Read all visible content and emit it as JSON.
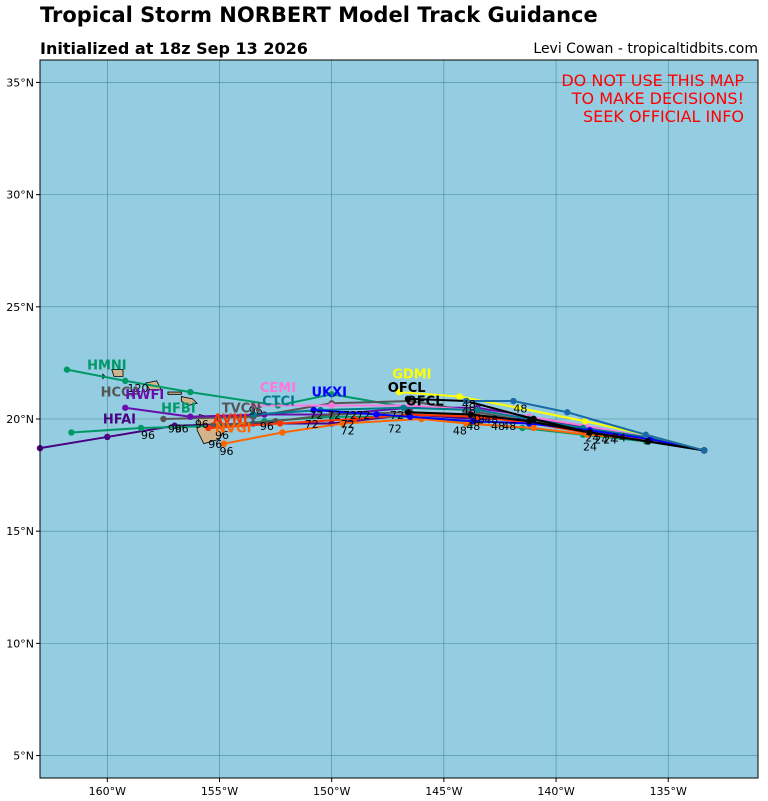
{
  "header": {
    "title": "Tropical Storm NORBERT Model Track Guidance",
    "subtitle": "Initialized at 18z Sep 13 2026",
    "credit": "Levi Cowan - tropicaltidbits.com"
  },
  "warning": [
    "DO NOT USE THIS MAP",
    "TO MAKE DECISIONS!",
    "SEEK OFFICIAL INFO"
  ],
  "map": {
    "lon_range": [
      -163,
      -131
    ],
    "lat_range": [
      4,
      36
    ],
    "ocean_color": "#94cde2",
    "land_color": "#d2b48c",
    "grid_color": "#4a8a8a",
    "lon_ticks": [
      -160,
      -155,
      -150,
      -145,
      -140,
      -135
    ],
    "lon_tick_labels": [
      "160°W",
      "155°W",
      "150°W",
      "145°W",
      "140°W",
      "135°W"
    ],
    "lat_ticks": [
      5,
      10,
      15,
      20,
      25,
      30,
      35
    ],
    "lat_tick_labels": [
      "5°N",
      "10°N",
      "15°N",
      "20°N",
      "25°N",
      "30°N",
      "35°N"
    ]
  },
  "islands": [
    {
      "name": "hawaii-big-island",
      "poly": [
        [
          -155.9,
          20.2
        ],
        [
          -155.1,
          20.0
        ],
        [
          -154.8,
          19.5
        ],
        [
          -155.0,
          19.1
        ],
        [
          -155.7,
          18.9
        ],
        [
          -156.0,
          19.5
        ]
      ]
    },
    {
      "name": "maui",
      "poly": [
        [
          -156.7,
          21.0
        ],
        [
          -156.2,
          20.9
        ],
        [
          -156.0,
          20.7
        ],
        [
          -156.4,
          20.6
        ],
        [
          -156.7,
          20.8
        ]
      ]
    },
    {
      "name": "oahu",
      "poly": [
        [
          -158.3,
          21.6
        ],
        [
          -157.8,
          21.7
        ],
        [
          -157.6,
          21.3
        ],
        [
          -158.1,
          21.3
        ]
      ]
    },
    {
      "name": "kauai",
      "poly": [
        [
          -159.8,
          22.2
        ],
        [
          -159.3,
          22.2
        ],
        [
          -159.3,
          21.9
        ],
        [
          -159.7,
          21.9
        ]
      ]
    },
    {
      "name": "molokai",
      "poly": [
        [
          -157.3,
          21.2
        ],
        [
          -156.7,
          21.2
        ],
        [
          -156.7,
          21.1
        ],
        [
          -157.3,
          21.1
        ]
      ]
    },
    {
      "name": "niihau",
      "poly": [
        [
          -160.2,
          22.0
        ],
        [
          -160.1,
          21.9
        ],
        [
          -160.2,
          21.8
        ]
      ]
    }
  ],
  "chart_data": {
    "type": "map-tracks",
    "tracks": [
      {
        "name": "HMNI",
        "color": "#009966",
        "points": [
          [
            -133.4,
            18.6
          ],
          [
            -136,
            19.2
          ],
          [
            -138.8,
            19.5
          ],
          [
            -141,
            20
          ],
          [
            -143.5,
            20.4
          ],
          [
            -146.5,
            20.5
          ],
          [
            -150,
            21.1
          ],
          [
            -152.4,
            20.6
          ],
          [
            -156.3,
            21.2
          ],
          [
            -159.2,
            21.7
          ],
          [
            -161.8,
            22.2
          ]
        ],
        "label": {
          "text": "HMNI",
          "lon": -160.9,
          "lat": 22.2
        }
      },
      {
        "name": "HCCA",
        "color": "#555555",
        "points": [
          [
            -133.4,
            18.6
          ],
          [
            -136,
            19.1
          ],
          [
            -138.7,
            19.6
          ],
          [
            -141.2,
            19.9
          ],
          [
            -143.5,
            20.3
          ],
          [
            -146.5,
            20.8
          ],
          [
            -150,
            20.7
          ],
          [
            -153.5,
            20.1
          ],
          [
            -157.5,
            20
          ]
        ],
        "label": {
          "text": "HCCA",
          "lon": -160.3,
          "lat": 21.0
        }
      },
      {
        "name": "HWFI",
        "color": "#6a0dad",
        "points": [
          [
            -133.4,
            18.6
          ],
          [
            -136,
            19.2
          ],
          [
            -138.7,
            19.6
          ],
          [
            -141.2,
            20.1
          ],
          [
            -143.5,
            20.5
          ],
          [
            -146.5,
            20.5
          ],
          [
            -150,
            20.2
          ],
          [
            -153,
            20.2
          ],
          [
            -156.3,
            20.1
          ],
          [
            -159.2,
            20.5
          ]
        ],
        "label": {
          "text": "HWFI",
          "lon": -159.2,
          "lat": 20.9
        }
      },
      {
        "name": "HFAI",
        "color": "#4b0082",
        "points": [
          [
            -133.4,
            18.6
          ],
          [
            -136,
            19.2
          ],
          [
            -138.7,
            19.6
          ],
          [
            -141,
            20
          ],
          [
            -143.5,
            20
          ],
          [
            -146.5,
            20.2
          ],
          [
            -150,
            19.8
          ],
          [
            -153.5,
            19.8
          ],
          [
            -157,
            19.7
          ],
          [
            -160,
            19.2
          ],
          [
            -163,
            18.7
          ]
        ],
        "label": {
          "text": "HFAI",
          "lon": -160.2,
          "lat": 19.8
        }
      },
      {
        "name": "HFBI",
        "color": "#009966",
        "points": [
          [
            -133.4,
            18.6
          ],
          [
            -136,
            19.0
          ],
          [
            -138.8,
            19.3
          ],
          [
            -141.5,
            19.6
          ],
          [
            -143.8,
            19.8
          ],
          [
            -146.5,
            20.1
          ],
          [
            -150,
            20.1
          ],
          [
            -153,
            19.9
          ],
          [
            -155,
            19.7
          ],
          [
            -158.5,
            19.6
          ],
          [
            -161.6,
            19.4
          ]
        ],
        "label": {
          "text": "HFBI",
          "lon": -157.6,
          "lat": 20.3
        }
      },
      {
        "name": "TVCN",
        "color": "#555555",
        "points": [
          [
            -133.4,
            18.6
          ],
          [
            -136,
            19.1
          ],
          [
            -138.7,
            19.5
          ],
          [
            -141.2,
            19.9
          ],
          [
            -143.7,
            20.2
          ],
          [
            -146.5,
            20.3
          ],
          [
            -150,
            20.2
          ],
          [
            -152.5,
            19.9
          ],
          [
            -155.3,
            19.7
          ]
        ],
        "label": {
          "text": "TVCN",
          "lon": -154.9,
          "lat": 20.3
        }
      },
      {
        "name": "AVNI",
        "color": "#ff3300",
        "points": [
          [
            -133.4,
            18.6
          ],
          [
            -136,
            19.1
          ],
          [
            -138.7,
            19.4
          ],
          [
            -141,
            19.8
          ],
          [
            -143.5,
            20.1
          ],
          [
            -146.5,
            20.2
          ],
          [
            -149,
            20.0
          ],
          [
            -152.3,
            19.8
          ],
          [
            -155.5,
            19.6
          ]
        ],
        "label": {
          "text": "AVNI",
          "lon": -155.3,
          "lat": 19.8
        }
      },
      {
        "name": "NVGI",
        "color": "#ff6600",
        "points": [
          [
            -133.4,
            18.6
          ],
          [
            -136,
            19.1
          ],
          [
            -138.6,
            19.3
          ],
          [
            -141,
            19.6
          ],
          [
            -144,
            19.8
          ],
          [
            -146,
            20.0
          ],
          [
            -149.5,
            19.8
          ],
          [
            -152.2,
            19.4
          ],
          [
            -154.8,
            18.9
          ]
        ],
        "label": {
          "text": "NVGI",
          "lon": -155.2,
          "lat": 19.4
        }
      },
      {
        "name": "CEMI",
        "color": "#ff77dd",
        "points": [
          [
            -133.4,
            18.6
          ],
          [
            -136,
            19.2
          ],
          [
            -138.7,
            19.7
          ],
          [
            -141.2,
            20.1
          ],
          [
            -143.7,
            20.4
          ],
          [
            -146.5,
            20.6
          ],
          [
            -150,
            20.6
          ],
          [
            -153.5,
            20.6
          ]
        ],
        "label": {
          "text": "CEMI",
          "lon": -153.2,
          "lat": 21.2
        }
      },
      {
        "name": "CTCI",
        "color": "#007c8c",
        "points": [
          [
            -133.4,
            18.6
          ],
          [
            -136,
            19.2
          ],
          [
            -138.8,
            19.6
          ],
          [
            -141.2,
            20
          ],
          [
            -143.5,
            20.4
          ],
          [
            -146.8,
            20.5
          ],
          [
            -150.5,
            20.4
          ],
          [
            -153.5,
            20.2
          ]
        ],
        "label": {
          "text": "CTCI",
          "lon": -153.1,
          "lat": 20.6
        }
      },
      {
        "name": "UKXI",
        "color": "#0000ff",
        "points": [
          [
            -133.4,
            18.6
          ],
          [
            -135.8,
            19.1
          ],
          [
            -138.5,
            19.5
          ],
          [
            -141.2,
            19.8
          ],
          [
            -143.7,
            19.9
          ],
          [
            -146.5,
            20.1
          ],
          [
            -148.0,
            20.2
          ],
          [
            -150.8,
            20.4
          ]
        ],
        "label": {
          "text": "UKXI",
          "lon": -150.9,
          "lat": 21.0
        }
      },
      {
        "name": "GDMI",
        "color": "#ffff00",
        "points": [
          [
            -133.4,
            18.6
          ],
          [
            -136,
            19.3
          ],
          [
            -138.7,
            19.9
          ],
          [
            -141.7,
            20.5
          ],
          [
            -144.3,
            21.0
          ],
          [
            -147,
            21.2
          ]
        ],
        "label": {
          "text": "GDMI",
          "lon": -147.3,
          "lat": 21.8
        }
      },
      {
        "name": "OFCL-1",
        "color": "#000000",
        "points": [
          [
            -133.4,
            18.6
          ],
          [
            -135.9,
            19.0
          ],
          [
            -138.5,
            19.4
          ],
          [
            -141.0,
            20.0
          ],
          [
            -144.0,
            20.8
          ],
          [
            -146.6,
            20.9
          ]
        ],
        "label": {
          "text": "OFCL",
          "lon": -147.5,
          "lat": 21.2
        }
      },
      {
        "name": "OFCL-2",
        "color": "#000000",
        "points": [
          [
            -133.4,
            18.6
          ],
          [
            -135.9,
            19.0
          ],
          [
            -138.5,
            19.4
          ],
          [
            -141.2,
            19.9
          ],
          [
            -143.8,
            20.2
          ],
          [
            -146.6,
            20.3
          ]
        ],
        "label": {
          "text": "OFCL",
          "lon": -146.7,
          "lat": 20.6
        }
      },
      {
        "name": "teal-east",
        "color": "#1a6aa8",
        "points": [
          [
            -133.4,
            18.6
          ],
          [
            -136,
            19.3
          ],
          [
            -139.5,
            20.3
          ],
          [
            -141.9,
            20.8
          ],
          [
            -144,
            20.8
          ]
        ],
        "label": null
      }
    ],
    "hour_labels": [
      {
        "text": "120",
        "lon": -159.1,
        "lat": 21.2
      },
      {
        "text": "96",
        "lon": -153.7,
        "lat": 20.2
      },
      {
        "text": "96",
        "lon": -156.1,
        "lat": 19.6
      },
      {
        "text": "96",
        "lon": -153.2,
        "lat": 19.5
      },
      {
        "text": "96",
        "lon": -157.3,
        "lat": 19.4
      },
      {
        "text": "96",
        "lon": -157.0,
        "lat": 19.4
      },
      {
        "text": "96",
        "lon": -158.5,
        "lat": 19.1
      },
      {
        "text": "96",
        "lon": -155.2,
        "lat": 19.1
      },
      {
        "text": "96",
        "lon": -155.5,
        "lat": 18.7
      },
      {
        "text": "96",
        "lon": -155.0,
        "lat": 18.4
      },
      {
        "text": "72",
        "lon": -151.0,
        "lat": 20.0
      },
      {
        "text": "72",
        "lon": -150.2,
        "lat": 20.0
      },
      {
        "text": "72",
        "lon": -149.5,
        "lat": 20.0
      },
      {
        "text": "72",
        "lon": -148.9,
        "lat": 20.0
      },
      {
        "text": "72",
        "lon": -151.2,
        "lat": 19.6
      },
      {
        "text": "72",
        "lon": -149.6,
        "lat": 19.6
      },
      {
        "text": "72",
        "lon": -149.6,
        "lat": 19.3
      },
      {
        "text": "72",
        "lon": -147.5,
        "lat": 19.4
      },
      {
        "text": "72",
        "lon": -147.4,
        "lat": 20.0
      },
      {
        "text": "48",
        "lon": -144.2,
        "lat": 20.5
      },
      {
        "text": "48",
        "lon": -144.2,
        "lat": 20.2
      },
      {
        "text": "48",
        "lon": -143.8,
        "lat": 19.8
      },
      {
        "text": "48",
        "lon": -143.2,
        "lat": 19.8
      },
      {
        "text": "48",
        "lon": -144.0,
        "lat": 19.5
      },
      {
        "text": "48",
        "lon": -142.9,
        "lat": 19.5
      },
      {
        "text": "48",
        "lon": -142.4,
        "lat": 19.5
      },
      {
        "text": "48",
        "lon": -144.6,
        "lat": 19.3
      },
      {
        "text": "48",
        "lon": -141.9,
        "lat": 20.3
      },
      {
        "text": "24",
        "lon": -138.7,
        "lat": 19.0
      },
      {
        "text": "24",
        "lon": -138.3,
        "lat": 18.9
      },
      {
        "text": "24",
        "lon": -137.9,
        "lat": 18.9
      },
      {
        "text": "24",
        "lon": -137.5,
        "lat": 19.0
      },
      {
        "text": "24",
        "lon": -138.8,
        "lat": 18.6
      }
    ]
  }
}
